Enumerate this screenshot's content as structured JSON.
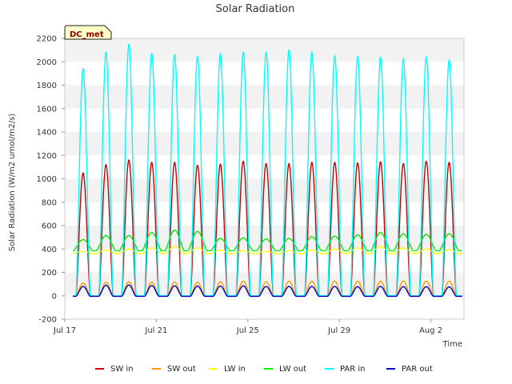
{
  "chart_data": {
    "type": "line",
    "title": "Solar Radiation",
    "xlabel": "Time",
    "ylabel": "Solar Radiation (W/m2 umol/m2/s)",
    "ylim": [
      -200,
      2200
    ],
    "yticks": [
      -200,
      0,
      200,
      400,
      600,
      800,
      1000,
      1200,
      1400,
      1600,
      1800,
      2000,
      2200
    ],
    "xlim": [
      17.0,
      34.45
    ],
    "xticks": [
      {
        "value": 17,
        "label": "Jul 17"
      },
      {
        "value": 21,
        "label": "Jul 21"
      },
      {
        "value": 25,
        "label": "Jul 25"
      },
      {
        "value": 29,
        "label": "Jul 29"
      },
      {
        "value": 33,
        "label": "Aug 2"
      }
    ],
    "x_unit": "day of July (midday of each daily cycle)",
    "days": [
      17.8,
      18.8,
      19.8,
      20.8,
      21.8,
      22.8,
      23.8,
      24.8,
      25.8,
      26.8,
      27.8,
      28.8,
      29.8,
      30.8,
      31.8,
      32.8,
      33.8
    ],
    "grid": "horizontal-bands",
    "legend_position": "bottom",
    "annotation": "DC_met",
    "series": [
      {
        "name": "SW in",
        "color": "#cc0000",
        "night": 0,
        "peaks": [
          1050,
          1120,
          1160,
          1140,
          1140,
          1115,
          1125,
          1150,
          1130,
          1130,
          1140,
          1140,
          1135,
          1145,
          1130,
          1150,
          1140
        ]
      },
      {
        "name": "SW out",
        "color": "#ff9900",
        "night": 0,
        "peaks": [
          110,
          115,
          120,
          118,
          118,
          115,
          120,
          125,
          120,
          125,
          125,
          125,
          125,
          125,
          125,
          125,
          125
        ]
      },
      {
        "name": "LW in",
        "color": "#ffff00",
        "night": 360,
        "peaks": [
          380,
          390,
          400,
          410,
          420,
          410,
          390,
          385,
          380,
          385,
          390,
          400,
          410,
          420,
          410,
          400,
          395
        ]
      },
      {
        "name": "LW out",
        "color": "#00ee00",
        "night": 385,
        "peaks": [
          480,
          515,
          515,
          540,
          560,
          550,
          490,
          495,
          485,
          490,
          505,
          510,
          520,
          540,
          530,
          525,
          530
        ]
      },
      {
        "name": "PAR in",
        "color": "#00ffff",
        "night": 0,
        "peaks": [
          1940,
          2080,
          2150,
          2070,
          2060,
          2045,
          2070,
          2080,
          2080,
          2100,
          2080,
          2050,
          2045,
          2040,
          2025,
          2040,
          2015
        ]
      },
      {
        "name": "PAR out",
        "color": "#0000cc",
        "night": -5,
        "peaks": [
          80,
          90,
          92,
          88,
          85,
          83,
          83,
          85,
          80,
          80,
          80,
          80,
          78,
          80,
          78,
          78,
          76
        ]
      }
    ]
  }
}
